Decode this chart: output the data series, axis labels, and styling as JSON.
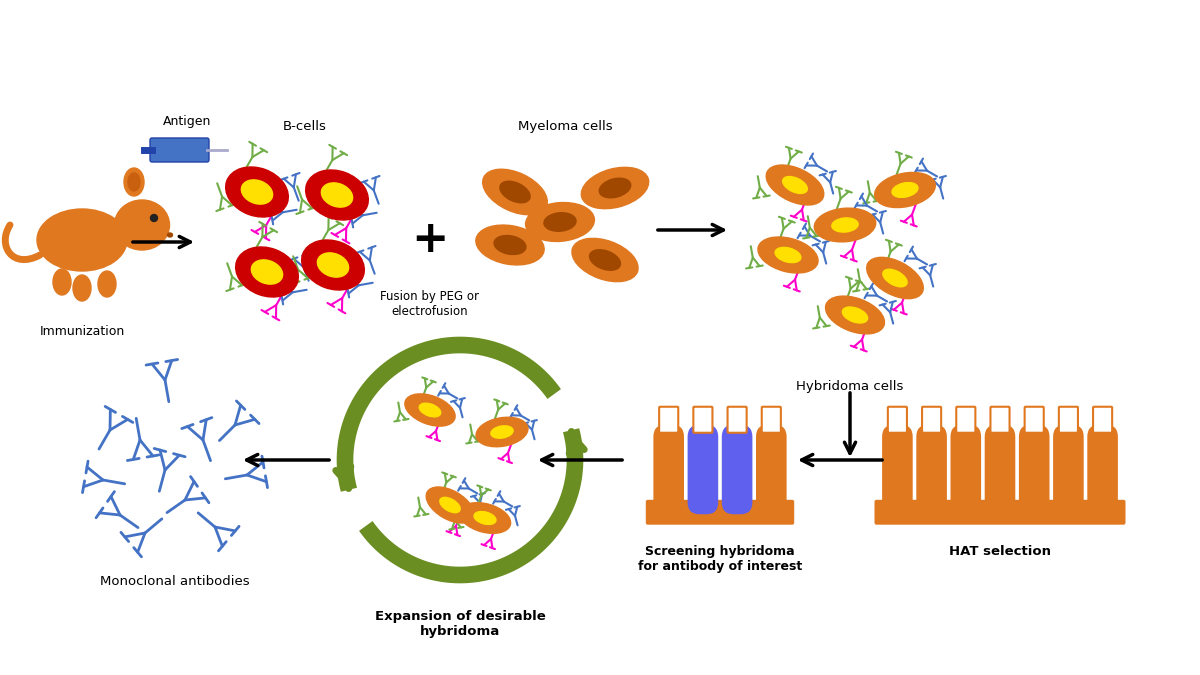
{
  "bg_color": "#ffffff",
  "orange_cell": "#E07820",
  "dark_orange": "#A04800",
  "red_cell": "#CC0000",
  "yellow_nucleus": "#FFE000",
  "blue_ab": "#4472C4",
  "green_ab": "#70AD47",
  "magenta_ab": "#FF00CC",
  "green_arrow": "#6B8E23",
  "black": "#111111",
  "labels": {
    "antigen": "Antigen",
    "immunization": "Immunization",
    "b_cells": "B-cells",
    "fusion": "Fusion by PEG or\nelectrofusion",
    "myeloma": "Myeloma cells",
    "hybridoma": "Hybridoma cells",
    "hat": "HAT selection",
    "screening": "Screening hybridoma\nfor antibody of interest",
    "expansion": "Expansion of desirable\nhybridoma",
    "monoclonal": "Monoclonal antibodies"
  }
}
